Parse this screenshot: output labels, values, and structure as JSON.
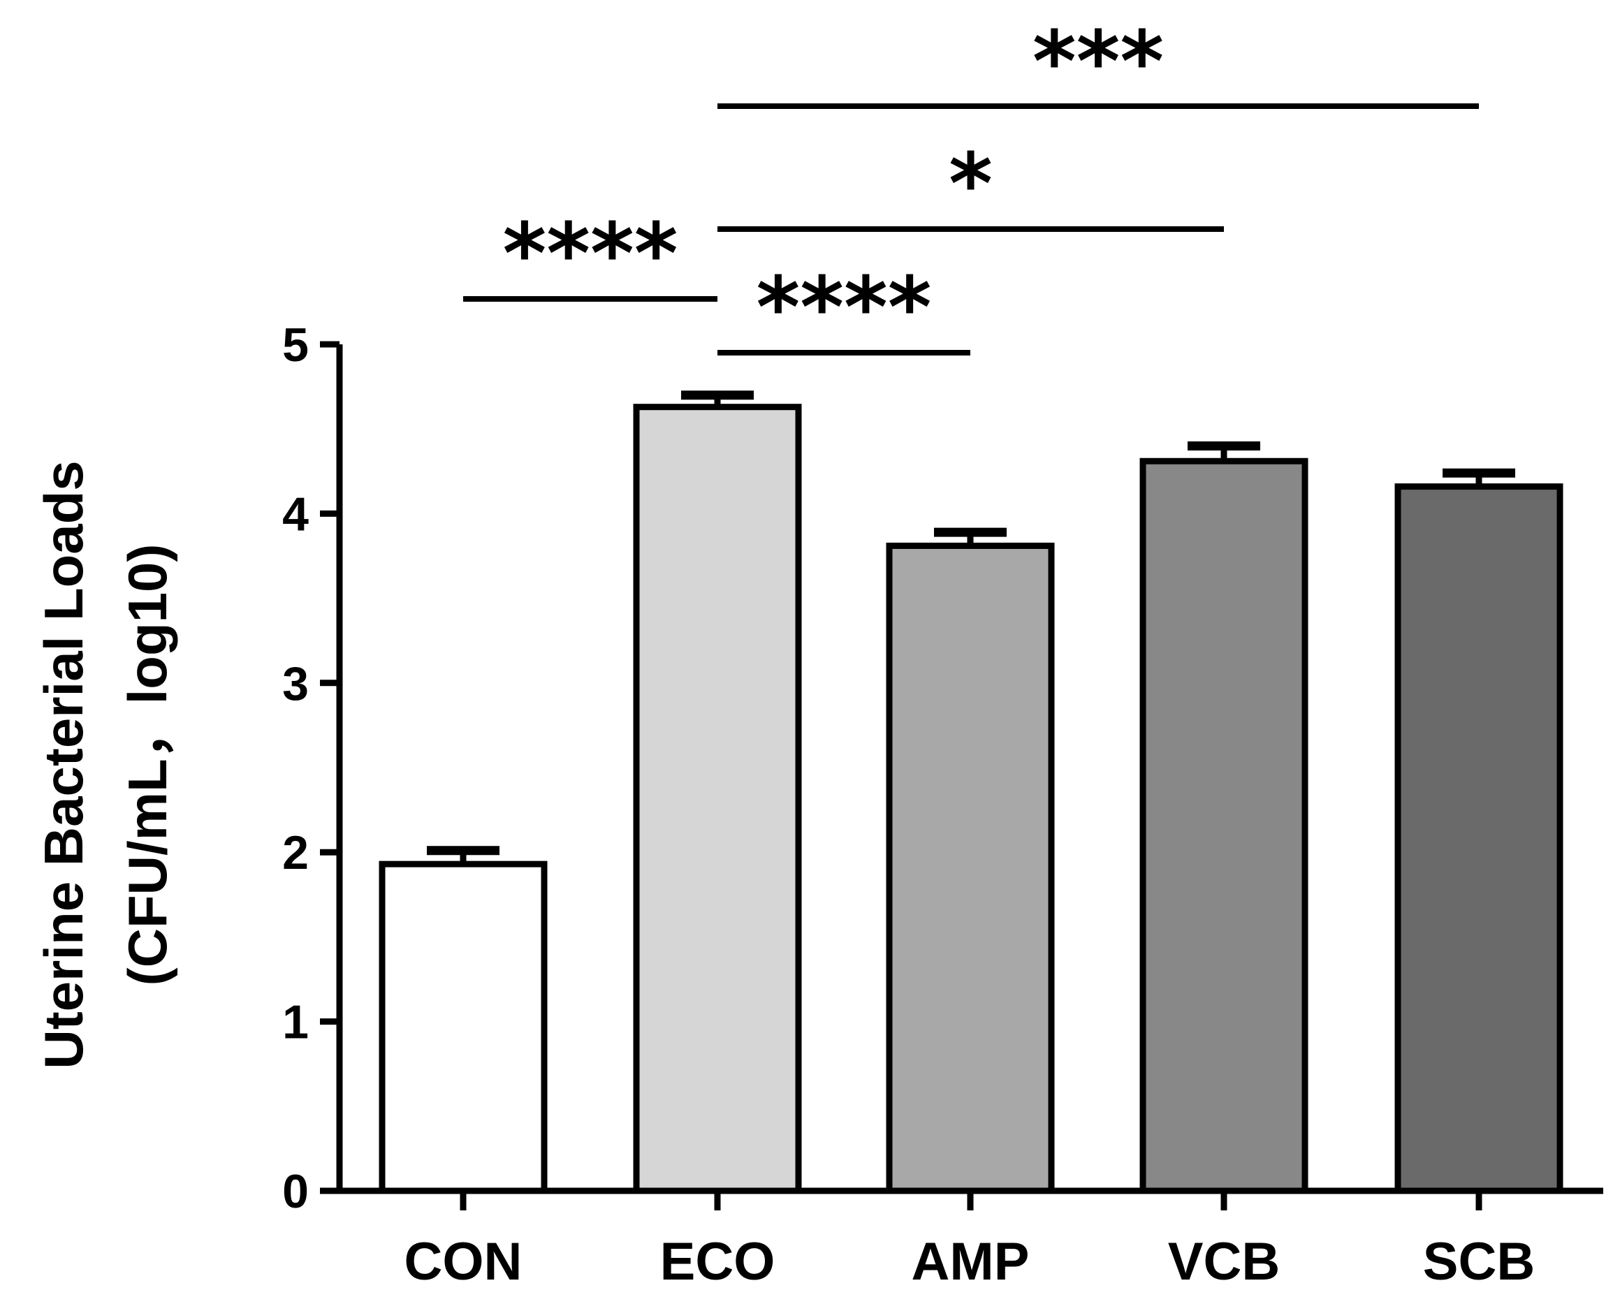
{
  "chart_data": {
    "type": "bar",
    "title": "",
    "xlabel": "",
    "ylabel_line1": "Uterine Bacterial Loads",
    "ylabel_line2": "(CFU/mL，log10)",
    "ylim": [
      0,
      5
    ],
    "yticks": [
      "0",
      "1",
      "2",
      "3",
      "4",
      "5"
    ],
    "categories": [
      "CON",
      "ECO",
      "AMP",
      "VCB",
      "SCB"
    ],
    "values": [
      1.93,
      4.63,
      3.81,
      4.31,
      4.16
    ],
    "errors": [
      0.08,
      0.07,
      0.08,
      0.09,
      0.08
    ],
    "colors": [
      "#ffffff",
      "#d6d6d6",
      "#a8a8a8",
      "#888888",
      "#6a6a6a"
    ],
    "significance": [
      {
        "from": "CON",
        "to": "ECO",
        "label": "****"
      },
      {
        "from": "ECO",
        "to": "AMP",
        "label": "****"
      },
      {
        "from": "ECO",
        "to": "VCB",
        "label": "*"
      },
      {
        "from": "ECO",
        "to": "SCB",
        "label": "***"
      }
    ]
  }
}
